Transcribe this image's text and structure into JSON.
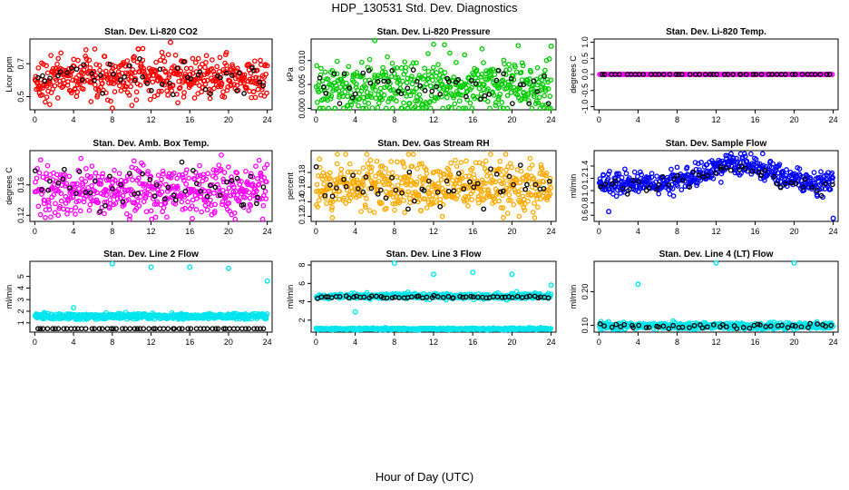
{
  "title": "HDP_130531  Std. Dev. Diagnostics",
  "xlabel": "Hour of Day (UTC)",
  "chart_data": [
    {
      "type": "scatter",
      "title": "Stan. Dev. Li-820 CO2",
      "ylabel": "Licor ppm",
      "xlim": [
        -0.5,
        24.5
      ],
      "ylim": [
        0.42,
        0.85
      ],
      "yticks": [
        0.5,
        0.7
      ],
      "yticklabels": [
        "0.5",
        "0.7"
      ],
      "xticks": [
        0,
        4,
        8,
        12,
        16,
        20,
        24
      ],
      "grid": false,
      "series": [
        {
          "color": "#ff0000",
          "n": 480,
          "center": 0.615,
          "spread": 0.065,
          "min": 0.43,
          "max": 0.83
        },
        {
          "color": "#000000",
          "n": 48,
          "center": 0.62,
          "spread": 0.05,
          "min": 0.5,
          "max": 0.73
        }
      ],
      "outliers": [
        {
          "x": 14.0,
          "y": 0.83,
          "color": "#ff0000"
        },
        {
          "x": 8.0,
          "y": 0.43,
          "color": "#ff0000"
        }
      ]
    },
    {
      "type": "scatter",
      "title": "Stan. Dev. Li-820 Pressure",
      "ylabel": "kPa",
      "xlim": [
        -0.5,
        24.5
      ],
      "ylim": [
        -0.0003,
        0.0145
      ],
      "yticks": [
        0.0,
        0.005,
        0.01
      ],
      "yticklabels": [
        "0.000",
        "0.005",
        "0.010"
      ],
      "xticks": [
        0,
        4,
        8,
        12,
        16,
        20,
        24
      ],
      "grid": false,
      "series": [
        {
          "color": "#00cc00",
          "n": 480,
          "center": 0.0045,
          "spread": 0.0028,
          "min": 0.0,
          "max": 0.014
        },
        {
          "color": "#000000",
          "n": 48,
          "center": 0.005,
          "spread": 0.0022,
          "min": 0.001,
          "max": 0.009
        }
      ],
      "outliers": [
        {
          "x": 24.0,
          "y": 0.013,
          "color": "#00cc00"
        },
        {
          "x": 6.0,
          "y": 0.0142,
          "color": "#00cc00"
        }
      ]
    },
    {
      "type": "scatter",
      "title": "Stan. Dev. Li-820 Temp.",
      "ylabel": "degrees C",
      "xlim": [
        -0.5,
        24.5
      ],
      "ylim": [
        -1.1,
        1.1
      ],
      "yticks": [
        -1.0,
        -0.5,
        0.0,
        0.5,
        1.0
      ],
      "yticklabels": [
        "-1.0",
        "-0.5",
        "0.0",
        "0.5",
        "1.0"
      ],
      "xticks": [
        0,
        4,
        8,
        12,
        16,
        20,
        24
      ],
      "grid": false,
      "series": [
        {
          "color": "#ff00ff",
          "n": 240,
          "center": 0.0,
          "spread": 0.0,
          "min": 0.0,
          "max": 0.0
        },
        {
          "color": "#000000",
          "n": 48,
          "center": 0.0,
          "spread": 0.0,
          "min": 0.0,
          "max": 0.0
        }
      ],
      "outliers": []
    },
    {
      "type": "scatter",
      "title": "Stan. Dev. Amb. Box Temp.",
      "ylabel": "degrees C",
      "xlim": [
        -0.5,
        24.5
      ],
      "ylim": [
        0.112,
        0.205
      ],
      "yticks": [
        0.12,
        0.16
      ],
      "yticklabels": [
        "0.12",
        "0.16"
      ],
      "xticks": [
        0,
        4,
        8,
        12,
        16,
        20,
        24
      ],
      "grid": false,
      "series": [
        {
          "color": "#ff00ff",
          "n": 480,
          "center": 0.153,
          "spread": 0.017,
          "min": 0.115,
          "max": 0.2
        },
        {
          "color": "#000000",
          "n": 48,
          "center": 0.155,
          "spread": 0.014,
          "min": 0.125,
          "max": 0.19
        }
      ],
      "outliers": []
    },
    {
      "type": "scatter",
      "title": "Stan. Dev. Gas Stream RH",
      "ylabel": "percent",
      "xlim": [
        -0.5,
        24.5
      ],
      "ylim": [
        0.113,
        0.21
      ],
      "yticks": [
        0.12,
        0.14,
        0.16,
        0.18
      ],
      "yticklabels": [
        "0.12",
        "0.14",
        "0.16",
        "0.18"
      ],
      "xticks": [
        0,
        4,
        8,
        12,
        16,
        20,
        24
      ],
      "grid": false,
      "series": [
        {
          "color": "#ffaa00",
          "n": 520,
          "center": 0.16,
          "spread": 0.017,
          "min": 0.118,
          "max": 0.205
        },
        {
          "color": "#000000",
          "n": 48,
          "center": 0.16,
          "spread": 0.013,
          "min": 0.13,
          "max": 0.19
        }
      ],
      "outliers": []
    },
    {
      "type": "scatter",
      "title": "Stan. Dev. Sample Flow",
      "ylabel": "ml/min",
      "xlim": [
        -0.5,
        24.5
      ],
      "ylim": [
        0.5,
        1.65
      ],
      "yticks": [
        0.6,
        0.8,
        1.0,
        1.2,
        1.4
      ],
      "yticklabels": [
        "0.6",
        "0.8",
        "1.0",
        "1.2",
        "1.4"
      ],
      "xticks": [
        0,
        4,
        8,
        12,
        16,
        20,
        24
      ],
      "grid": false,
      "series": [
        {
          "color": "#0000ff",
          "n": 480,
          "center": 1.15,
          "spread": 0.09,
          "min": 0.6,
          "max": 1.6,
          "trend": "hump"
        },
        {
          "color": "#000000",
          "n": 48,
          "center": 1.1,
          "spread": 0.07,
          "min": 0.8,
          "max": 1.4,
          "trend": "hump"
        }
      ],
      "outliers": [
        {
          "x": 24.0,
          "y": 0.55,
          "color": "#0000ff"
        },
        {
          "x": 1.0,
          "y": 0.66,
          "color": "#0000ff"
        }
      ]
    },
    {
      "type": "scatter",
      "title": "Stan. Dev. Line 2 Flow",
      "ylabel": "ml/min",
      "xlim": [
        -0.5,
        24.5
      ],
      "ylim": [
        0.2,
        6.3
      ],
      "yticks": [
        1,
        2,
        3,
        4,
        5
      ],
      "yticklabels": [
        "1",
        "2",
        "3",
        "4",
        "5"
      ],
      "xticks": [
        0,
        4,
        8,
        12,
        16,
        20,
        24
      ],
      "grid": false,
      "series": [
        {
          "color": "#00e5ee",
          "n": 600,
          "center": 1.55,
          "spread": 0.12,
          "min": 1.3,
          "max": 1.9
        },
        {
          "color": "#000000",
          "n": 60,
          "center": 0.5,
          "spread": 0.0,
          "min": 0.5,
          "max": 0.5
        }
      ],
      "outliers": [
        {
          "x": 8.0,
          "y": 6.1,
          "color": "#00e5ee"
        },
        {
          "x": 12.0,
          "y": 5.8,
          "color": "#00e5ee"
        },
        {
          "x": 16.0,
          "y": 5.8,
          "color": "#00e5ee"
        },
        {
          "x": 20.0,
          "y": 5.7,
          "color": "#00e5ee"
        },
        {
          "x": 24.0,
          "y": 4.6,
          "color": "#00e5ee"
        },
        {
          "x": 4.0,
          "y": 2.3,
          "color": "#00e5ee"
        }
      ]
    },
    {
      "type": "scatter",
      "title": "Stan. Dev. Line 3 Flow",
      "ylabel": "ml/min",
      "xlim": [
        -0.5,
        24.5
      ],
      "ylim": [
        0.7,
        8.4
      ],
      "yticks": [
        2,
        4,
        6,
        8
      ],
      "yticklabels": [
        "2",
        "4",
        "6",
        "8"
      ],
      "xticks": [
        0,
        4,
        8,
        12,
        16,
        20,
        24
      ],
      "grid": false,
      "series": [
        {
          "color": "#00e5ee",
          "n": 500,
          "center": 4.6,
          "spread": 0.14,
          "min": 4.2,
          "max": 5.1
        },
        {
          "color": "#00e5ee",
          "n": 500,
          "center": 1.05,
          "spread": 0.05,
          "min": 0.9,
          "max": 1.2
        },
        {
          "color": "#000000",
          "n": 60,
          "center": 4.5,
          "spread": 0.08,
          "min": 4.3,
          "max": 4.8
        }
      ],
      "outliers": [
        {
          "x": 8.0,
          "y": 8.2,
          "color": "#00e5ee"
        },
        {
          "x": 12.0,
          "y": 7.0,
          "color": "#00e5ee"
        },
        {
          "x": 16.0,
          "y": 7.2,
          "color": "#00e5ee"
        },
        {
          "x": 20.0,
          "y": 7.0,
          "color": "#00e5ee"
        },
        {
          "x": 24.0,
          "y": 5.8,
          "color": "#00e5ee"
        },
        {
          "x": 4.0,
          "y": 2.9,
          "color": "#00e5ee"
        }
      ]
    },
    {
      "type": "scatter",
      "title": "Stan. Dev. Line 4 (LT) Flow",
      "ylabel": "ml/min",
      "xlim": [
        -0.5,
        24.5
      ],
      "ylim": [
        0.08,
        0.29
      ],
      "yticks": [
        0.1,
        0.2
      ],
      "yticklabels": [
        "0.10",
        "0.20"
      ],
      "xticks": [
        0,
        4,
        8,
        12,
        16,
        20,
        24
      ],
      "grid": false,
      "series": [
        {
          "color": "#00e5ee",
          "n": 520,
          "center": 0.098,
          "spread": 0.005,
          "min": 0.088,
          "max": 0.115
        },
        {
          "color": "#000000",
          "n": 48,
          "center": 0.098,
          "spread": 0.004,
          "min": 0.09,
          "max": 0.11
        }
      ],
      "outliers": [
        {
          "x": 12.0,
          "y": 0.285,
          "color": "#00e5ee"
        },
        {
          "x": 20.0,
          "y": 0.285,
          "color": "#00e5ee"
        },
        {
          "x": 4.0,
          "y": 0.222,
          "color": "#00e5ee"
        }
      ]
    }
  ]
}
